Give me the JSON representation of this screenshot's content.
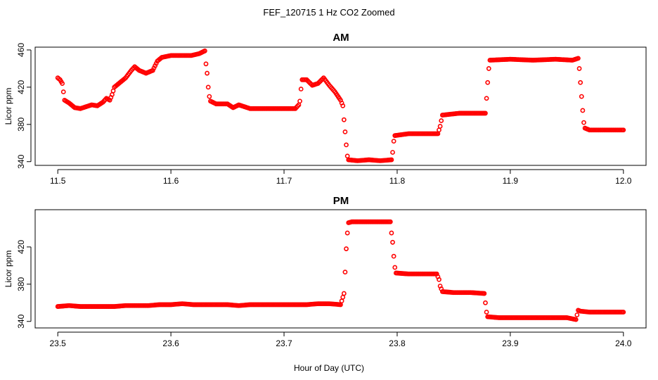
{
  "title": "FEF_120715  1 Hz CO2 Zoomed",
  "xlabel": "Hour of Day (UTC)",
  "colors": {
    "points": "#ff0000",
    "axes": "#000000",
    "background": "#ffffff"
  },
  "chart_data": [
    {
      "type": "scatter",
      "title": "AM",
      "ylabel": "Licor ppm",
      "xlim": [
        11.48,
        12.02
      ],
      "ylim": [
        336,
        463
      ],
      "x_ticks": [
        "11.5",
        "11.6",
        "11.7",
        "11.8",
        "11.9",
        "12.0"
      ],
      "y_ticks": [
        "340",
        "380",
        "420",
        "460"
      ],
      "grid": false,
      "series": [
        {
          "points": [
            [
              11.5,
              430
            ],
            [
              11.502,
              428
            ],
            [
              11.504,
              424
            ],
            [
              11.505,
              415
            ],
            [
              11.506,
              406
            ],
            [
              11.51,
              403
            ],
            [
              11.515,
              398
            ],
            [
              11.52,
              397
            ],
            [
              11.525,
              399
            ],
            [
              11.53,
              401
            ],
            [
              11.535,
              400
            ],
            [
              11.54,
              404
            ],
            [
              11.543,
              408
            ],
            [
              11.546,
              406
            ],
            [
              11.548,
              412
            ],
            [
              11.55,
              420
            ],
            [
              11.555,
              425
            ],
            [
              11.56,
              430
            ],
            [
              11.565,
              438
            ],
            [
              11.568,
              442
            ],
            [
              11.572,
              438
            ],
            [
              11.578,
              435
            ],
            [
              11.584,
              438
            ],
            [
              11.588,
              448
            ],
            [
              11.592,
              452
            ],
            [
              11.6,
              454
            ],
            [
              11.61,
              454
            ],
            [
              11.618,
              454
            ],
            [
              11.625,
              456
            ],
            [
              11.63,
              459
            ],
            [
              11.631,
              445
            ],
            [
              11.632,
              435
            ],
            [
              11.633,
              420
            ],
            [
              11.634,
              410
            ],
            [
              11.635,
              405
            ],
            [
              11.64,
              402
            ],
            [
              11.65,
              402
            ],
            [
              11.655,
              398
            ],
            [
              11.66,
              401
            ],
            [
              11.67,
              397
            ],
            [
              11.69,
              397
            ],
            [
              11.71,
              397
            ],
            [
              11.713,
              401
            ],
            [
              11.714,
              405
            ],
            [
              11.715,
              418
            ],
            [
              11.716,
              428
            ],
            [
              11.72,
              428
            ],
            [
              11.725,
              422
            ],
            [
              11.73,
              424
            ],
            [
              11.735,
              430
            ],
            [
              11.74,
              422
            ],
            [
              11.745,
              415
            ],
            [
              11.75,
              406
            ],
            [
              11.752,
              400
            ],
            [
              11.753,
              385
            ],
            [
              11.754,
              372
            ],
            [
              11.755,
              358
            ],
            [
              11.756,
              346
            ],
            [
              11.757,
              342
            ],
            [
              11.765,
              341
            ],
            [
              11.775,
              342
            ],
            [
              11.785,
              341
            ],
            [
              11.795,
              342
            ],
            [
              11.796,
              350
            ],
            [
              11.797,
              362
            ],
            [
              11.798,
              368
            ],
            [
              11.81,
              370
            ],
            [
              11.825,
              370
            ],
            [
              11.836,
              370
            ],
            [
              11.838,
              378
            ],
            [
              11.84,
              390
            ],
            [
              11.855,
              392
            ],
            [
              11.87,
              392
            ],
            [
              11.878,
              392
            ],
            [
              11.879,
              408
            ],
            [
              11.88,
              425
            ],
            [
              11.881,
              440
            ],
            [
              11.882,
              449
            ],
            [
              11.9,
              450
            ],
            [
              11.92,
              449
            ],
            [
              11.94,
              450
            ],
            [
              11.955,
              449
            ],
            [
              11.96,
              451
            ],
            [
              11.961,
              440
            ],
            [
              11.962,
              425
            ],
            [
              11.963,
              410
            ],
            [
              11.964,
              395
            ],
            [
              11.965,
              382
            ],
            [
              11.966,
              376
            ],
            [
              11.97,
              374
            ],
            [
              11.985,
              374
            ],
            [
              12.0,
              374
            ]
          ]
        }
      ]
    },
    {
      "type": "scatter",
      "title": "PM",
      "ylabel": "Licor ppm",
      "xlim": [
        23.48,
        24.02
      ],
      "ylim": [
        333,
        460
      ],
      "x_ticks": [
        "23.5",
        "23.6",
        "23.7",
        "23.8",
        "23.9",
        "24.0"
      ],
      "y_ticks": [
        "340",
        "380",
        "420"
      ],
      "grid": false,
      "series": [
        {
          "points": [
            [
              23.5,
              356
            ],
            [
              23.51,
              357
            ],
            [
              23.52,
              356
            ],
            [
              23.53,
              356
            ],
            [
              23.54,
              356
            ],
            [
              23.55,
              356
            ],
            [
              23.56,
              357
            ],
            [
              23.57,
              357
            ],
            [
              23.58,
              357
            ],
            [
              23.59,
              358
            ],
            [
              23.6,
              358
            ],
            [
              23.61,
              359
            ],
            [
              23.62,
              358
            ],
            [
              23.63,
              358
            ],
            [
              23.64,
              358
            ],
            [
              23.65,
              358
            ],
            [
              23.66,
              357
            ],
            [
              23.67,
              358
            ],
            [
              23.68,
              358
            ],
            [
              23.69,
              358
            ],
            [
              23.7,
              358
            ],
            [
              23.71,
              358
            ],
            [
              23.72,
              358
            ],
            [
              23.73,
              359
            ],
            [
              23.74,
              359
            ],
            [
              23.75,
              358
            ],
            [
              23.753,
              370
            ],
            [
              23.754,
              393
            ],
            [
              23.755,
              418
            ],
            [
              23.756,
              435
            ],
            [
              23.757,
              446
            ],
            [
              23.76,
              447
            ],
            [
              23.77,
              447
            ],
            [
              23.78,
              447
            ],
            [
              23.79,
              447
            ],
            [
              23.794,
              447
            ],
            [
              23.795,
              435
            ],
            [
              23.796,
              425
            ],
            [
              23.797,
              410
            ],
            [
              23.798,
              398
            ],
            [
              23.799,
              392
            ],
            [
              23.81,
              391
            ],
            [
              23.82,
              391
            ],
            [
              23.835,
              391
            ],
            [
              23.837,
              385
            ],
            [
              23.838,
              378
            ],
            [
              23.84,
              372
            ],
            [
              23.85,
              371
            ],
            [
              23.865,
              371
            ],
            [
              23.877,
              370
            ],
            [
              23.878,
              360
            ],
            [
              23.879,
              350
            ],
            [
              23.88,
              345
            ],
            [
              23.89,
              344
            ],
            [
              23.9,
              344
            ],
            [
              23.91,
              344
            ],
            [
              23.92,
              344
            ],
            [
              23.93,
              344
            ],
            [
              23.94,
              344
            ],
            [
              23.95,
              344
            ],
            [
              23.958,
              342
            ],
            [
              23.96,
              352
            ],
            [
              23.962,
              351
            ],
            [
              23.97,
              350
            ],
            [
              23.98,
              350
            ],
            [
              23.99,
              350
            ],
            [
              24.0,
              350
            ]
          ]
        }
      ]
    }
  ]
}
